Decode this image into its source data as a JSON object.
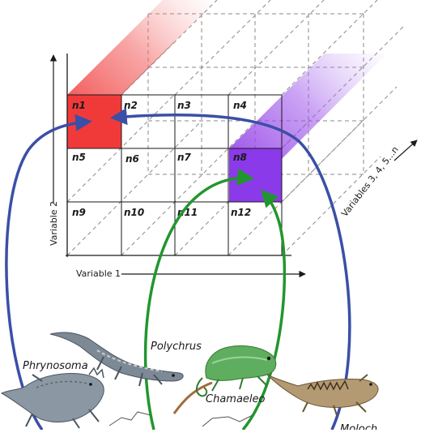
{
  "axes": {
    "x_label": "Variable 1",
    "y_label": "Variable 2",
    "z_label": "Variables 3, 4, 5...n"
  },
  "cells": [
    "n1",
    "n2",
    "n3",
    "n4",
    "n5",
    "n6",
    "n7",
    "n8",
    "n9",
    "n10",
    "n11",
    "n12"
  ],
  "highlighted_cells": [
    {
      "cell": "n1",
      "color": "#f03a3a"
    },
    {
      "cell": "n8",
      "color": "#8a3ae8"
    }
  ],
  "species": {
    "phrynosoma": "Phrynosoma",
    "polychrus": "Polychrus",
    "chamaeleo": "Chamaeleo",
    "moloch": "Moloch"
  },
  "arrow_colors": {
    "blue": "#3b4fa6",
    "green": "#22962e"
  }
}
